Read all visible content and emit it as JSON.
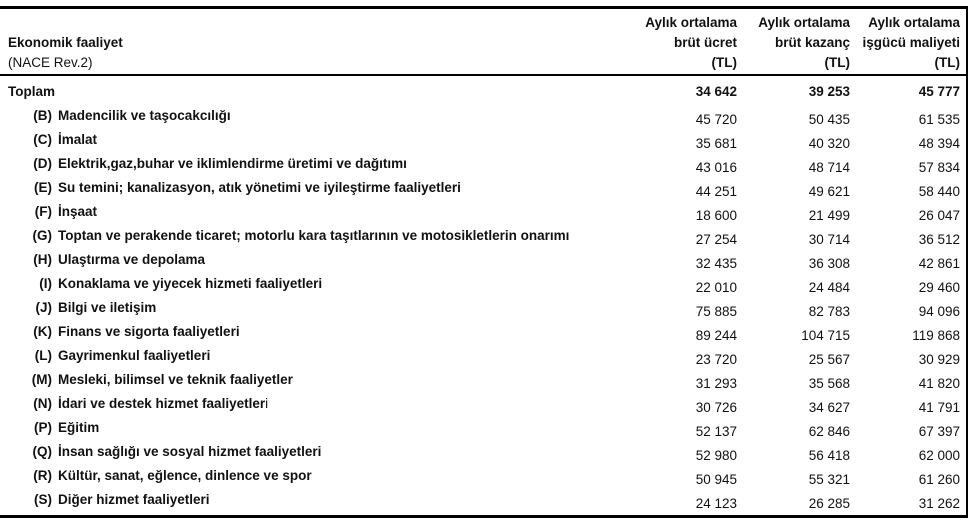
{
  "table": {
    "header": {
      "activity_line1": "Ekonomik faaliyet",
      "activity_line2": "(NACE Rev.2)",
      "columns": [
        {
          "line1": "Aylık ortalama",
          "line2": "brüt ücret",
          "line3": "(TL)"
        },
        {
          "line1": "Aylık ortalama",
          "line2": "brüt kazanç",
          "line3": "(TL)"
        },
        {
          "line1": "Aylık ortalama",
          "line2": "işgücü maliyeti",
          "line3": "(TL)"
        }
      ]
    },
    "rows": [
      {
        "code": "",
        "name": "Toplam",
        "total": true,
        "values": [
          "34 642",
          "39 253",
          "45 777"
        ]
      },
      {
        "code": "(B)",
        "name": "Madencilik ve taşocakcılığı",
        "values": [
          "45 720",
          "50 435",
          "61 535"
        ]
      },
      {
        "code": "(C)",
        "name": "İmalat",
        "values": [
          "35 681",
          "40 320",
          "48 394"
        ]
      },
      {
        "code": "(D)",
        "name": "Elektrik,gaz,buhar ve iklimlendirme üretimi ve dağıtımı",
        "values": [
          "43 016",
          "48 714",
          "57 834"
        ]
      },
      {
        "code": "(E)",
        "name": "Su temini; kanalizasyon, atık yönetimi ve iyileştirme faaliyetleri",
        "values": [
          "44 251",
          "49 621",
          "58 440"
        ]
      },
      {
        "code": "(F)",
        "name": "İnşaat",
        "values": [
          "18 600",
          "21 499",
          "26 047"
        ]
      },
      {
        "code": "(G)",
        "name": "Toptan ve perakende ticaret; motorlu kara taşıtlarının ve motosikletlerin onarımı",
        "values": [
          "27 254",
          "30 714",
          "36 512"
        ]
      },
      {
        "code": "(H)",
        "name": "Ulaştırma ve depolama",
        "values": [
          "32 435",
          "36 308",
          "42 861"
        ]
      },
      {
        "code": "(I)",
        "name": "Konaklama ve yiyecek hizmeti faaliyetleri",
        "values": [
          "22 010",
          "24 484",
          "29 460"
        ]
      },
      {
        "code": "(J)",
        "name": "Bilgi ve iletişim",
        "values": [
          "75 885",
          "82 783",
          "94 096"
        ]
      },
      {
        "code": "(K)",
        "name": "Finans ve sigorta faaliyetleri",
        "values": [
          "89 244",
          "104 715",
          "119 868"
        ]
      },
      {
        "code": "(L)",
        "name": "Gayrimenkul faaliyetleri",
        "values": [
          "23 720",
          "25 567",
          "30 929"
        ]
      },
      {
        "code": "(M)",
        "name": "Mesleki, bilimsel ve teknik faaliyetler",
        "values": [
          "31 293",
          "35 568",
          "41 820"
        ]
      },
      {
        "code": "(N)",
        "name": "İdari ve destek hizmet faaliyetler",
        "name_light": "i",
        "values": [
          "30 726",
          "34 627",
          "41 791"
        ]
      },
      {
        "code": "(P)",
        "name": "Eğitim",
        "values": [
          "52 137",
          "62 846",
          "67 397"
        ]
      },
      {
        "code": "(Q)",
        "name": "İnsan sağlığı ve sosyal hizmet faaliyetleri",
        "values": [
          "52 980",
          "56 418",
          "62 000"
        ]
      },
      {
        "code": "(R)",
        "name": "Kültür, sanat, eğlence, dinlence ve spor",
        "values": [
          "50 945",
          "55 321",
          "61 260"
        ]
      },
      {
        "code": "(S)",
        "name": "Diğer hizmet faaliyetleri",
        "values": [
          "24 123",
          "26 285",
          "31 262"
        ]
      }
    ]
  },
  "colors": {
    "text": "#111111",
    "border": "#000000",
    "background": "#ffffff"
  }
}
